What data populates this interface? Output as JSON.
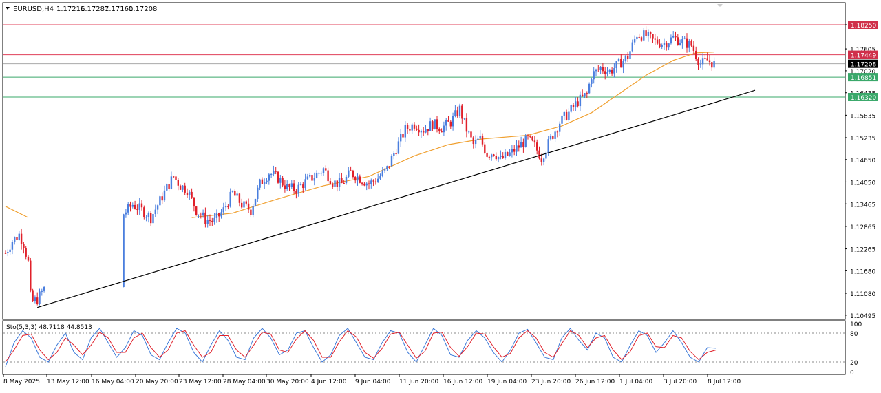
{
  "symbol_header": {
    "menu_arrow": "triangle-down-icon",
    "title": "EURUSD,H4",
    "open": "1.17216",
    "high": "1.17287",
    "low": "1.17160",
    "close": "1.17208"
  },
  "colors": {
    "bull_candle": "#4a7ede",
    "bear_candle": "#e0202a",
    "moving_average": "#f0a030",
    "trendline": "#000000",
    "resistance_line": "#e0405a",
    "support_line": "#3aa86a",
    "current_price_line": "#aaaaaa",
    "stoch_main": "#3a78d8",
    "stoch_signal": "#e0202a",
    "grid_border": "#000000"
  },
  "price_axis": {
    "labels": [
      "1.18250",
      "1.17605",
      "1.17020",
      "1.16435",
      "1.15835",
      "1.15235",
      "1.14650",
      "1.14050",
      "1.13465",
      "1.12865",
      "1.12265",
      "1.11680",
      "1.11080",
      "1.10495"
    ],
    "ticks": [
      1.1825,
      1.17605,
      1.1702,
      1.16435,
      1.15835,
      1.15235,
      1.1465,
      1.1405,
      1.13465,
      1.12865,
      1.12265,
      1.1168,
      1.1108,
      1.10495
    ],
    "range": [
      1.104,
      1.1882
    ]
  },
  "price_tags": [
    {
      "name": "resistance-upper",
      "value": "1.18250",
      "price": 1.1825,
      "color": "#d0304a"
    },
    {
      "name": "resistance-lower",
      "value": "1.17449",
      "price": 1.17449,
      "color": "#d0304a"
    },
    {
      "name": "current-price",
      "value": "1.17208",
      "price": 1.17208,
      "color": "#000000"
    },
    {
      "name": "support-upper",
      "value": "1.16851",
      "price": 1.16851,
      "color": "#3aa86a"
    },
    {
      "name": "support-lower",
      "value": "1.16320",
      "price": 1.1632,
      "color": "#3aa86a"
    }
  ],
  "time_axis": {
    "labels": [
      "8 May 2025",
      "13 May 12:00",
      "16 May 04:00",
      "20 May 20:00",
      "23 May 12:00",
      "28 May 04:00",
      "30 May 20:00",
      "4 Jun 12:00",
      "9 Jun 04:00",
      "11 Jun 20:00",
      "16 Jun 12:00",
      "19 Jun 04:00",
      "23 Jun 20:00",
      "26 Jun 12:00",
      "1 Jul 04:00",
      "3 Jul 20:00",
      "8 Jul 12:00"
    ]
  },
  "stochastic": {
    "title": "Sto(5,3,3) 48.7118 44.8513",
    "levels": [
      "100",
      "80",
      "20",
      "0"
    ],
    "level_values": [
      100,
      80,
      20,
      0
    ]
  },
  "chart_data": {
    "type": "candlestick",
    "symbol": "EURUSD",
    "timeframe": "H4",
    "y_range": [
      1.104,
      1.1882
    ],
    "gap_note": "",
    "close_path": [
      [
        0,
        1.1215
      ],
      [
        3,
        1.1248
      ],
      [
        6,
        1.1265
      ],
      [
        8,
        1.124
      ],
      [
        10,
        1.119
      ],
      [
        11,
        1.11
      ],
      [
        12,
        1.1085
      ],
      [
        14,
        1.1092
      ],
      [
        17,
        1.112
      ],
      [
        52,
        1.132
      ],
      [
        56,
        1.1345
      ],
      [
        60,
        1.133
      ],
      [
        64,
        1.131
      ],
      [
        68,
        1.1355
      ],
      [
        72,
        1.14
      ],
      [
        74,
        1.142
      ],
      [
        77,
        1.1395
      ],
      [
        80,
        1.1385
      ],
      [
        84,
        1.133
      ],
      [
        88,
        1.1305
      ],
      [
        92,
        1.13
      ],
      [
        96,
        1.133
      ],
      [
        100,
        1.1375
      ],
      [
        104,
        1.1345
      ],
      [
        108,
        1.133
      ],
      [
        112,
        1.14
      ],
      [
        116,
        1.143
      ],
      [
        120,
        1.1415
      ],
      [
        124,
        1.139
      ],
      [
        128,
        1.1385
      ],
      [
        132,
        1.1405
      ],
      [
        136,
        1.142
      ],
      [
        140,
        1.144
      ],
      [
        144,
        1.1405
      ],
      [
        148,
        1.14
      ],
      [
        152,
        1.143
      ],
      [
        156,
        1.1415
      ],
      [
        160,
        1.14
      ],
      [
        164,
        1.1415
      ],
      [
        168,
        1.144
      ],
      [
        172,
        1.1495
      ],
      [
        176,
        1.1545
      ],
      [
        180,
        1.156
      ],
      [
        184,
        1.1545
      ],
      [
        188,
        1.156
      ],
      [
        192,
        1.155
      ],
      [
        196,
        1.1565
      ],
      [
        200,
        1.16
      ],
      [
        203,
        1.1545
      ],
      [
        206,
        1.1505
      ],
      [
        209,
        1.152
      ],
      [
        212,
        1.148
      ],
      [
        215,
        1.1485
      ],
      [
        218,
        1.1465
      ],
      [
        222,
        1.148
      ],
      [
        226,
        1.15
      ],
      [
        230,
        1.152
      ],
      [
        233,
        1.15
      ],
      [
        236,
        1.147
      ],
      [
        240,
        1.152
      ],
      [
        244,
        1.1565
      ],
      [
        248,
        1.159
      ],
      [
        252,
        1.162
      ],
      [
        256,
        1.164
      ],
      [
        258,
        1.169
      ],
      [
        262,
        1.171
      ],
      [
        266,
        1.17
      ],
      [
        270,
        1.172
      ],
      [
        274,
        1.174
      ],
      [
        278,
        1.18
      ],
      [
        282,
        1.1795
      ],
      [
        286,
        1.178
      ],
      [
        290,
        1.1775
      ],
      [
        294,
        1.179
      ],
      [
        298,
        1.178
      ],
      [
        302,
        1.177
      ],
      [
        306,
        1.172
      ],
      [
        309,
        1.173
      ],
      [
        312,
        1.172
      ]
    ],
    "moving_average_path": [
      [
        0,
        1.134
      ],
      [
        10,
        1.131
      ],
      [
        82,
        1.131
      ],
      [
        100,
        1.1322
      ],
      [
        120,
        1.136
      ],
      [
        140,
        1.1395
      ],
      [
        160,
        1.142
      ],
      [
        180,
        1.1475
      ],
      [
        195,
        1.1505
      ],
      [
        210,
        1.152
      ],
      [
        230,
        1.153
      ],
      [
        245,
        1.1555
      ],
      [
        258,
        1.159
      ],
      [
        270,
        1.164
      ],
      [
        282,
        1.169
      ],
      [
        294,
        1.173
      ],
      [
        304,
        1.175
      ],
      [
        312,
        1.1752
      ]
    ],
    "trendline": {
      "from": {
        "bar": 14,
        "price": 1.107
      },
      "to": {
        "bar": 330,
        "price": 1.165
      }
    },
    "horizontal_levels": [
      1.1825,
      1.17449,
      1.17208,
      1.16851,
      1.1632
    ],
    "stochastic_main": [
      10,
      60,
      85,
      70,
      30,
      20,
      55,
      80,
      40,
      25,
      70,
      90,
      60,
      30,
      50,
      85,
      75,
      35,
      25,
      60,
      90,
      80,
      40,
      20,
      55,
      85,
      65,
      30,
      25,
      70,
      90,
      70,
      35,
      45,
      80,
      85,
      50,
      20,
      35,
      75,
      90,
      60,
      30,
      25,
      60,
      85,
      80,
      40,
      20,
      55,
      90,
      75,
      35,
      30,
      65,
      85,
      70,
      40,
      20,
      45,
      80,
      88,
      60,
      30,
      25,
      70,
      90,
      65,
      45,
      80,
      70,
      30,
      20,
      55,
      85,
      75,
      40,
      60,
      85,
      60,
      30,
      20,
      50,
      48.7
    ],
    "stochastic_signal": [
      20,
      45,
      75,
      78,
      45,
      25,
      40,
      70,
      55,
      35,
      55,
      82,
      70,
      40,
      40,
      70,
      80,
      50,
      30,
      45,
      80,
      85,
      55,
      30,
      40,
      75,
      75,
      45,
      30,
      55,
      82,
      78,
      45,
      40,
      68,
      85,
      65,
      30,
      30,
      62,
      85,
      72,
      40,
      28,
      48,
      78,
      82,
      55,
      28,
      42,
      80,
      82,
      50,
      32,
      52,
      80,
      78,
      52,
      30,
      38,
      70,
      85,
      70,
      40,
      30,
      58,
      85,
      75,
      50,
      70,
      75,
      45,
      25,
      42,
      75,
      80,
      52,
      50,
      75,
      70,
      42,
      25,
      40,
      44.9
    ]
  }
}
